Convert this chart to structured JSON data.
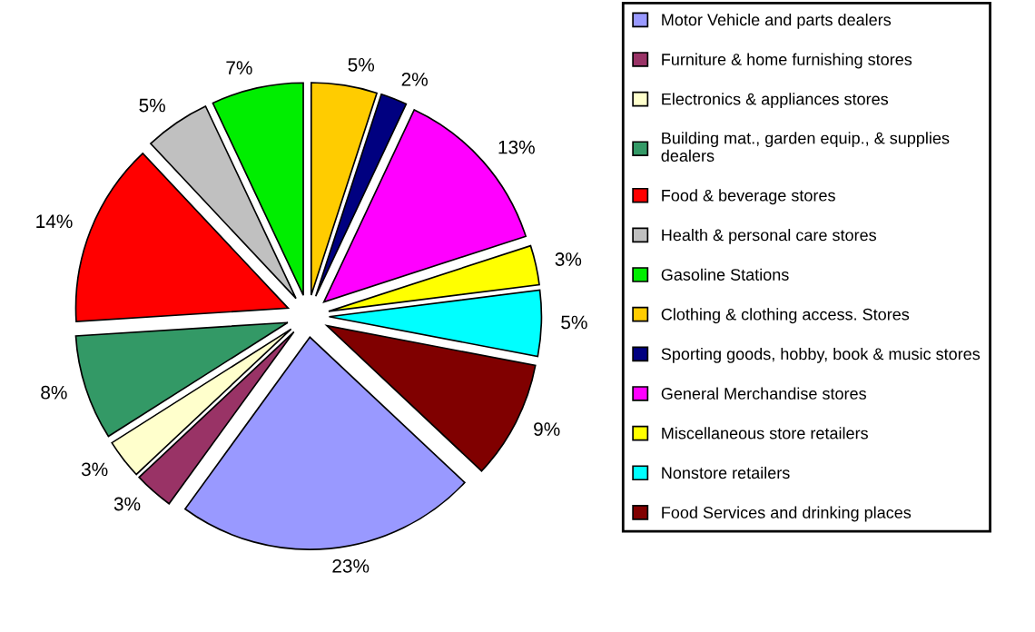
{
  "chart_data": {
    "type": "pie",
    "categories": [
      "Motor Vehicle and parts dealers",
      "Furniture & home furnishing stores",
      "Electronics & appliances stores",
      "Building mat., garden equip., & supplies dealers",
      "Food & beverage stores",
      "Health & personal care stores",
      "Gasoline Stations",
      "Clothing & clothing access. Stores",
      "Sporting goods, hobby, book & music stores",
      "General Merchandise stores",
      "Miscellaneous store retailers",
      "Nonstore retailers",
      "Food Services and drinking places"
    ],
    "values": [
      23,
      3,
      3,
      8,
      14,
      5,
      7,
      5,
      2,
      13,
      3,
      5,
      9
    ],
    "colors": [
      "#9999ff",
      "#993366",
      "#ffffcc",
      "#339966",
      "#ff0000",
      "#c0c0c0",
      "#00ee00",
      "#ffcc00",
      "#000080",
      "#ff00ff",
      "#ffff00",
      "#00ffff",
      "#800000"
    ],
    "value_labels": [
      "23%",
      "3%",
      "3%",
      "8%",
      "14%",
      "5%",
      "7%",
      "5%",
      "2%",
      "13%",
      "3%",
      "5%",
      "9%"
    ],
    "legend": "right"
  }
}
